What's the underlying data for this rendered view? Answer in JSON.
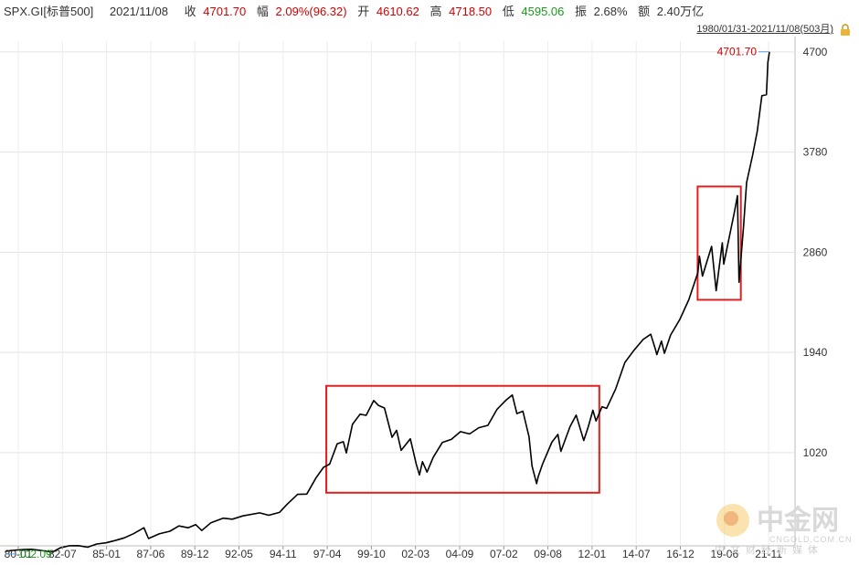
{
  "header": {
    "symbol": "SPX.GI[标普500]",
    "date": "2021/11/08",
    "close_label": "收",
    "close_value": "4701.70",
    "change_label": "幅",
    "change_value": "2.09%(96.32)",
    "open_label": "开",
    "open_value": "4610.62",
    "high_label": "高",
    "high_value": "4718.50",
    "low_label": "低",
    "low_value": "4595.06",
    "amplitude_label": "振",
    "amplitude_value": "2.68%",
    "volume_label": "额",
    "volume_value": "2.40万亿"
  },
  "range_text": "1980/01/31-2021/11/08(503月)",
  "icons": {
    "lock": "lock-icon"
  },
  "colors": {
    "line": "#000000",
    "grid": "#e3e3e3",
    "highlight": "#e02020",
    "up": "#d40000",
    "down": "#1a9a1a"
  },
  "watermark": {
    "cn": "中金网",
    "domain": "CNGOLD.COM.CN",
    "sub": "中文财经新媒体"
  },
  "chart_data": {
    "type": "line",
    "title": "",
    "xlabel": "",
    "ylabel": "",
    "ylim": [
      180,
      4800
    ],
    "y_ticks": [
      1020,
      1940,
      2860,
      3780,
      4700
    ],
    "x_ticks": [
      "80-01",
      "82-07",
      "85-01",
      "87-06",
      "89-12",
      "92-05",
      "94-11",
      "97-04",
      "99-10",
      "02-03",
      "04-09",
      "07-02",
      "09-08",
      "12-01",
      "14-07",
      "16-12",
      "19-06",
      "21-11"
    ],
    "grid": true,
    "max_label": "4701.70",
    "min_label": "102.09",
    "highlights": [
      {
        "from": "1997-09",
        "to": "2012-06"
      },
      {
        "from": "2018-01",
        "to": "2020-03"
      }
    ],
    "series": [
      {
        "points": [
          [
            "1980-01",
            114
          ],
          [
            "1980-06",
            122
          ],
          [
            "1981-01",
            130
          ],
          [
            "1981-06",
            131
          ],
          [
            "1982-01",
            120
          ],
          [
            "1982-08",
            107
          ],
          [
            "1983-01",
            145
          ],
          [
            "1983-07",
            164
          ],
          [
            "1984-01",
            165
          ],
          [
            "1984-07",
            151
          ],
          [
            "1985-01",
            180
          ],
          [
            "1985-07",
            191
          ],
          [
            "1986-01",
            212
          ],
          [
            "1986-07",
            236
          ],
          [
            "1987-01",
            274
          ],
          [
            "1987-08",
            329
          ],
          [
            "1987-11",
            230
          ],
          [
            "1988-06",
            273
          ],
          [
            "1989-01",
            297
          ],
          [
            "1989-07",
            346
          ],
          [
            "1990-01",
            329
          ],
          [
            "1990-06",
            358
          ],
          [
            "1990-10",
            304
          ],
          [
            "1991-04",
            375
          ],
          [
            "1991-12",
            417
          ],
          [
            "1992-06",
            408
          ],
          [
            "1993-01",
            438
          ],
          [
            "1993-12",
            466
          ],
          [
            "1994-06",
            444
          ],
          [
            "1995-01",
            470
          ],
          [
            "1995-06",
            544
          ],
          [
            "1996-01",
            636
          ],
          [
            "1996-07",
            639
          ],
          [
            "1997-01",
            786
          ],
          [
            "1997-06",
            885
          ],
          [
            "1997-10",
            914
          ],
          [
            "1998-03",
            1101
          ],
          [
            "1998-07",
            1120
          ],
          [
            "1998-09",
            1017
          ],
          [
            "1999-01",
            1279
          ],
          [
            "1999-06",
            1372
          ],
          [
            "1999-10",
            1362
          ],
          [
            "2000-03",
            1498
          ],
          [
            "2000-06",
            1454
          ],
          [
            "2000-10",
            1429
          ],
          [
            "2001-03",
            1160
          ],
          [
            "2001-06",
            1224
          ],
          [
            "2001-09",
            1040
          ],
          [
            "2002-03",
            1147
          ],
          [
            "2002-07",
            911
          ],
          [
            "2002-09",
            815
          ],
          [
            "2002-11",
            936
          ],
          [
            "2003-02",
            841
          ],
          [
            "2003-06",
            975
          ],
          [
            "2003-12",
            1112
          ],
          [
            "2004-06",
            1141
          ],
          [
            "2004-12",
            1212
          ],
          [
            "2005-06",
            1191
          ],
          [
            "2005-12",
            1248
          ],
          [
            "2006-06",
            1270
          ],
          [
            "2006-12",
            1418
          ],
          [
            "2007-06",
            1503
          ],
          [
            "2007-10",
            1549
          ],
          [
            "2008-01",
            1378
          ],
          [
            "2008-05",
            1400
          ],
          [
            "2008-09",
            1166
          ],
          [
            "2008-11",
            896
          ],
          [
            "2009-02",
            735
          ],
          [
            "2009-03",
            797
          ],
          [
            "2009-06",
            919
          ],
          [
            "2009-12",
            1115
          ],
          [
            "2010-04",
            1187
          ],
          [
            "2010-06",
            1031
          ],
          [
            "2010-12",
            1258
          ],
          [
            "2011-04",
            1364
          ],
          [
            "2011-09",
            1131
          ],
          [
            "2011-12",
            1258
          ],
          [
            "2012-03",
            1408
          ],
          [
            "2012-05",
            1310
          ],
          [
            "2012-09",
            1441
          ],
          [
            "2012-12",
            1426
          ],
          [
            "2013-06",
            1606
          ],
          [
            "2013-12",
            1848
          ],
          [
            "2014-06",
            1960
          ],
          [
            "2014-12",
            2059
          ],
          [
            "2015-05",
            2107
          ],
          [
            "2015-08",
            1972
          ],
          [
            "2015-09",
            1920
          ],
          [
            "2015-12",
            2044
          ],
          [
            "2016-02",
            1932
          ],
          [
            "2016-06",
            2099
          ],
          [
            "2016-12",
            2239
          ],
          [
            "2017-06",
            2423
          ],
          [
            "2017-12",
            2674
          ],
          [
            "2018-01",
            2824
          ],
          [
            "2018-03",
            2641
          ],
          [
            "2018-09",
            2914
          ],
          [
            "2018-12",
            2507
          ],
          [
            "2019-04",
            2946
          ],
          [
            "2019-05",
            2752
          ],
          [
            "2019-12",
            3231
          ],
          [
            "2020-02",
            3380
          ],
          [
            "2020-03",
            2585
          ],
          [
            "2020-06",
            3100
          ],
          [
            "2020-08",
            3500
          ],
          [
            "2020-12",
            3756
          ],
          [
            "2021-03",
            3973
          ],
          [
            "2021-06",
            4298
          ],
          [
            "2021-09",
            4308
          ],
          [
            "2021-10",
            4605
          ],
          [
            "2021-11",
            4701.7
          ]
        ]
      }
    ]
  }
}
